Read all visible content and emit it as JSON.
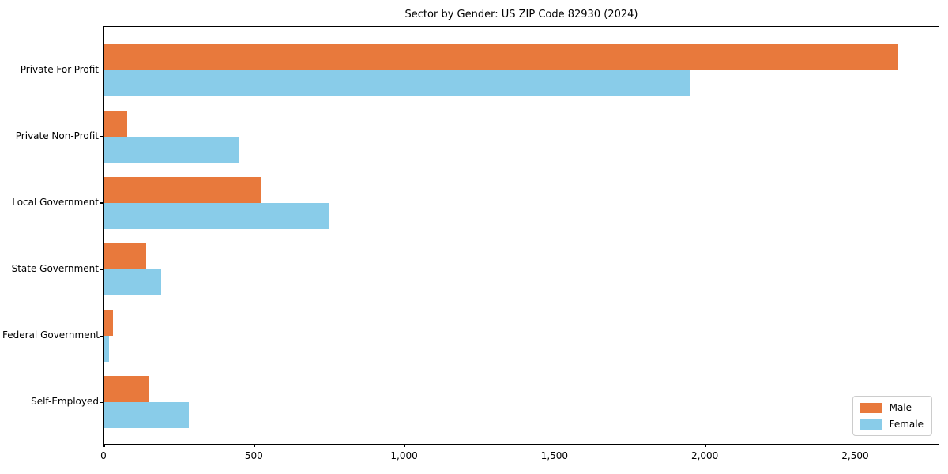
{
  "chart_data": {
    "type": "bar",
    "orientation": "horizontal",
    "title": "Sector by Gender: US ZIP Code 82930 (2024)",
    "categories": [
      "Private For-Profit",
      "Private Non-Profit",
      "Local Government",
      "State Government",
      "Federal Government",
      "Self-Employed"
    ],
    "series": [
      {
        "name": "Male",
        "color": "#e8793c",
        "values": [
          2640,
          75,
          520,
          140,
          30,
          150
        ]
      },
      {
        "name": "Female",
        "color": "#89cce9",
        "values": [
          1950,
          450,
          750,
          190,
          15,
          280
        ]
      }
    ],
    "xlabel": "",
    "ylabel": "",
    "xlim": [
      0,
      2780
    ],
    "xticks": [
      0,
      500,
      1000,
      1500,
      2000,
      2500
    ],
    "xtick_labels": [
      "0",
      "500",
      "1,000",
      "1,500",
      "2,000",
      "2,500"
    ],
    "grid": false,
    "legend_position": "lower right",
    "axis_color": "#000000"
  }
}
